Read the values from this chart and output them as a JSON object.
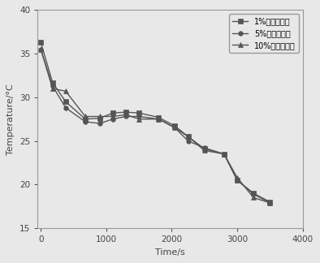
{
  "series": [
    {
      "label": "1%六水氯化钓",
      "marker": "s",
      "color": "#555555",
      "x": [
        0,
        180,
        380,
        680,
        900,
        1100,
        1300,
        1500,
        1800,
        2050,
        2250,
        2500,
        2800,
        3000,
        3250,
        3500
      ],
      "y": [
        36.3,
        31.7,
        29.5,
        27.5,
        27.6,
        28.2,
        28.3,
        28.2,
        27.7,
        26.7,
        25.5,
        24.1,
        23.5,
        20.5,
        19.0,
        18.0
      ]
    },
    {
      "label": "5%六水氯化钓",
      "marker": "o",
      "color": "#555555",
      "x": [
        0,
        180,
        380,
        680,
        900,
        1100,
        1300,
        1500,
        1800,
        2050,
        2250,
        2500,
        2800,
        3000,
        3250,
        3500
      ],
      "y": [
        35.5,
        31.3,
        28.8,
        27.2,
        27.0,
        27.5,
        27.8,
        27.8,
        27.5,
        26.5,
        25.0,
        24.2,
        23.5,
        20.5,
        18.9,
        17.9
      ]
    },
    {
      "label": "10%六水氯化钓",
      "marker": "^",
      "color": "#555555",
      "x": [
        0,
        180,
        380,
        680,
        900,
        1100,
        1300,
        1500,
        1800,
        2050,
        2250,
        2500,
        2800,
        3000,
        3250,
        3500
      ],
      "y": [
        35.5,
        31.0,
        30.7,
        27.8,
        27.8,
        27.8,
        28.0,
        27.5,
        27.5,
        26.5,
        25.5,
        23.9,
        23.5,
        20.8,
        18.5,
        17.9
      ]
    }
  ],
  "xlabel": "Time/s",
  "ylabel": "Temperature/°C",
  "xlim": [
    -50,
    4000
  ],
  "ylim": [
    15,
    40
  ],
  "xticks": [
    0,
    1000,
    2000,
    3000,
    4000
  ],
  "yticks": [
    15,
    20,
    25,
    30,
    35,
    40
  ],
  "linewidth": 1.0,
  "markersize": 4,
  "legend_loc": "upper right",
  "background_color": "#e8e8e8",
  "spine_color": "#999999",
  "tick_color": "#444444",
  "text_color": "#444444"
}
